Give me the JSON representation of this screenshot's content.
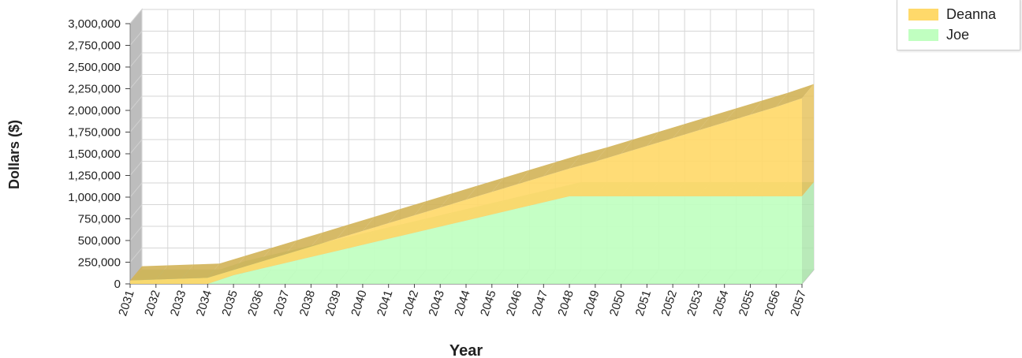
{
  "chart_data": {
    "type": "area",
    "stacked": true,
    "three_d": true,
    "x": [
      "2031",
      "2032",
      "2033",
      "2034",
      "2035",
      "2036",
      "2037",
      "2038",
      "2039",
      "2040",
      "2041",
      "2042",
      "2043",
      "2044",
      "2045",
      "2046",
      "2047",
      "2048",
      "2049",
      "2050",
      "2051",
      "2052",
      "2053",
      "2054",
      "2055",
      "2056",
      "2057"
    ],
    "series": [
      {
        "name": "Joe",
        "color": "#c0ffc0",
        "values": [
          0,
          0,
          0,
          0,
          100000,
          170000,
          240000,
          310000,
          380000,
          450000,
          520000,
          590000,
          660000,
          730000,
          800000,
          870000,
          940000,
          1010000,
          1010000,
          1010000,
          1010000,
          1010000,
          1010000,
          1010000,
          1010000,
          1010000,
          1010000
        ]
      },
      {
        "name": "Deanna",
        "color": "#ffd96a",
        "values": [
          40000,
          50000,
          60000,
          70000,
          60000,
          80000,
          100000,
          120000,
          140000,
          160000,
          180000,
          200000,
          220000,
          240000,
          260000,
          280000,
          300000,
          320000,
          400000,
          490000,
          580000,
          670000,
          760000,
          850000,
          940000,
          1030000,
          1130000
        ]
      }
    ],
    "xlabel": "Year",
    "ylabel": "Dollars ($)",
    "ylim": [
      0,
      3000000
    ],
    "yticks": [
      "0",
      "250,000",
      "500,000",
      "750,000",
      "1,000,000",
      "1,250,000",
      "1,500,000",
      "1,750,000",
      "2,000,000",
      "2,250,000",
      "2,500,000",
      "2,750,000",
      "3,000,000"
    ],
    "grid": true,
    "legend": "top-right",
    "legend_order": [
      "Deanna",
      "Joe"
    ]
  }
}
